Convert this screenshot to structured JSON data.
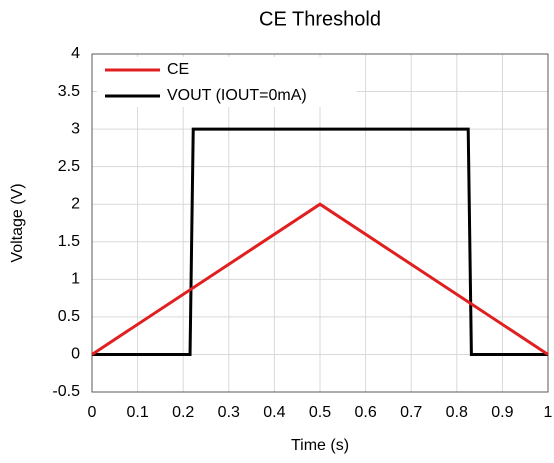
{
  "chart_data": {
    "type": "line",
    "title": "CE Threshold",
    "xlabel": "Time (s)",
    "ylabel": "Voltage (V)",
    "xlim": [
      0,
      1
    ],
    "xticks": [
      0,
      0.1,
      0.2,
      0.3,
      0.4,
      0.5,
      0.6,
      0.7,
      0.8,
      0.9,
      1
    ],
    "ylim": [
      -0.5,
      4
    ],
    "yticks": [
      -0.5,
      0,
      0.5,
      1,
      1.5,
      2,
      2.5,
      3,
      3.5,
      4
    ],
    "grid": true,
    "legend": "upper left",
    "series": [
      {
        "name": "CE",
        "color": "#e02020",
        "x": [
          0,
          0.5,
          1
        ],
        "values": [
          0,
          2,
          0
        ]
      },
      {
        "name": "VOUT (IOUT=0mA)",
        "color": "#000000",
        "x": [
          0,
          0.215,
          0.222,
          0.825,
          0.832,
          1
        ],
        "values": [
          0,
          0,
          3,
          3,
          0,
          0
        ]
      }
    ]
  }
}
